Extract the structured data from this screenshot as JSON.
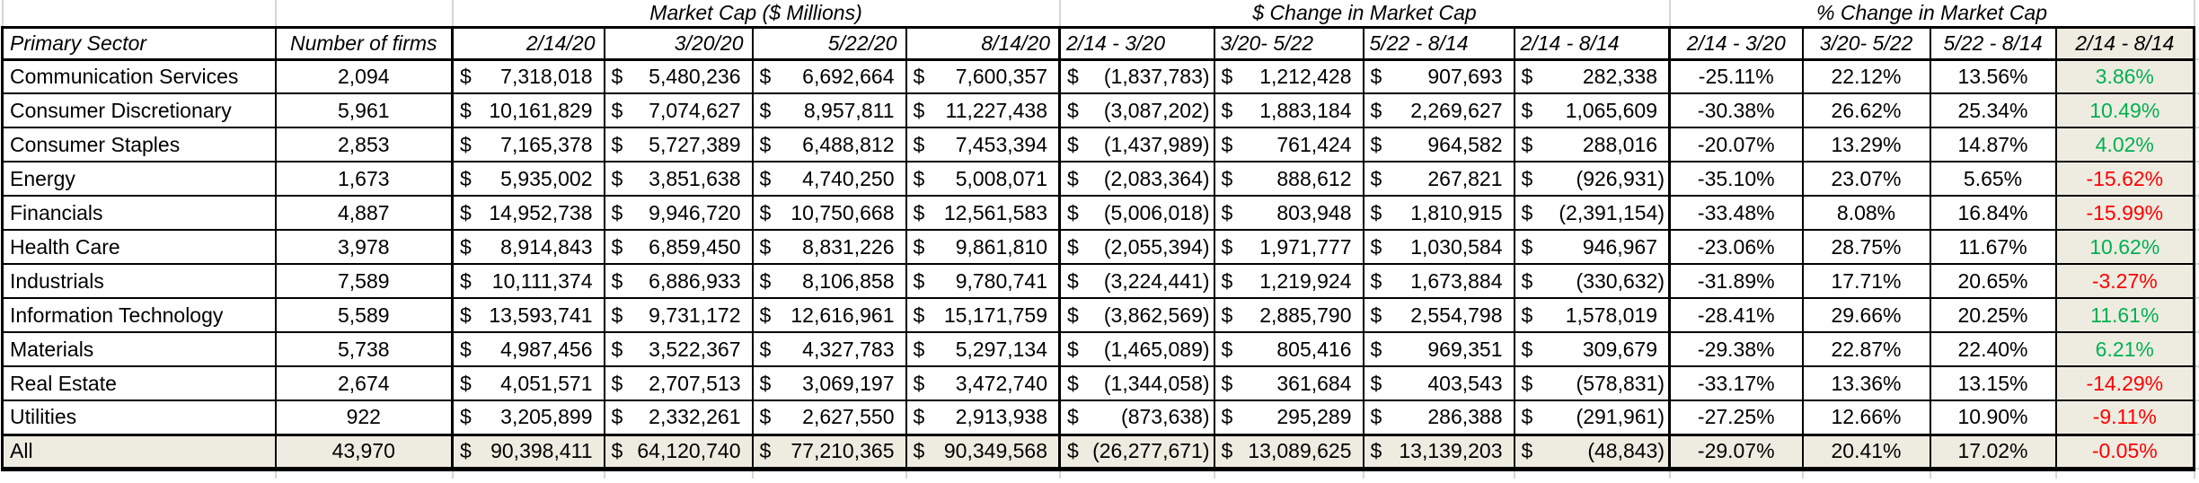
{
  "sections": {
    "market_cap": "Market Cap ($ Millions)",
    "dollar_change": "$ Change in Market Cap",
    "pct_change": "% Change in Market Cap"
  },
  "columns": {
    "primary_sector": "Primary Sector",
    "number_of_firms": "Number of firms",
    "market_cap_dates": [
      "2/14/20",
      "3/20/20",
      "5/22/20",
      "8/14/20"
    ],
    "dollar_change_periods": [
      "2/14 - 3/20",
      "3/20- 5/22",
      "5/22 - 8/14",
      "2/14 - 8/14"
    ],
    "pct_change_periods": [
      "2/14 - 3/20",
      "3/20- 5/22",
      "5/22 - 8/14",
      "2/14 - 8/14"
    ]
  },
  "currency_symbol": "$",
  "rows": [
    {
      "sector": "Communication Services",
      "firms": "2,094",
      "market_cap": [
        "7,318,018",
        "5,480,236",
        "6,692,664",
        "7,600,357"
      ],
      "dollar_change": [
        "(1,837,783)",
        "1,212,428",
        "907,693",
        "282,338"
      ],
      "pct_change": [
        "-25.11%",
        "22.12%",
        "13.56%",
        "3.86%"
      ],
      "is_total": false
    },
    {
      "sector": "Consumer Discretionary",
      "firms": "5,961",
      "market_cap": [
        "10,161,829",
        "7,074,627",
        "8,957,811",
        "11,227,438"
      ],
      "dollar_change": [
        "(3,087,202)",
        "1,883,184",
        "2,269,627",
        "1,065,609"
      ],
      "pct_change": [
        "-30.38%",
        "26.62%",
        "25.34%",
        "10.49%"
      ],
      "is_total": false
    },
    {
      "sector": "Consumer Staples",
      "firms": "2,853",
      "market_cap": [
        "7,165,378",
        "5,727,389",
        "6,488,812",
        "7,453,394"
      ],
      "dollar_change": [
        "(1,437,989)",
        "761,424",
        "964,582",
        "288,016"
      ],
      "pct_change": [
        "-20.07%",
        "13.29%",
        "14.87%",
        "4.02%"
      ],
      "is_total": false
    },
    {
      "sector": "Energy",
      "firms": "1,673",
      "market_cap": [
        "5,935,002",
        "3,851,638",
        "4,740,250",
        "5,008,071"
      ],
      "dollar_change": [
        "(2,083,364)",
        "888,612",
        "267,821",
        "(926,931)"
      ],
      "pct_change": [
        "-35.10%",
        "23.07%",
        "5.65%",
        "-15.62%"
      ],
      "is_total": false
    },
    {
      "sector": "Financials",
      "firms": "4,887",
      "market_cap": [
        "14,952,738",
        "9,946,720",
        "10,750,668",
        "12,561,583"
      ],
      "dollar_change": [
        "(5,006,018)",
        "803,948",
        "1,810,915",
        "(2,391,154)"
      ],
      "pct_change": [
        "-33.48%",
        "8.08%",
        "16.84%",
        "-15.99%"
      ],
      "is_total": false
    },
    {
      "sector": "Health Care",
      "firms": "3,978",
      "market_cap": [
        "8,914,843",
        "6,859,450",
        "8,831,226",
        "9,861,810"
      ],
      "dollar_change": [
        "(2,055,394)",
        "1,971,777",
        "1,030,584",
        "946,967"
      ],
      "pct_change": [
        "-23.06%",
        "28.75%",
        "11.67%",
        "10.62%"
      ],
      "is_total": false
    },
    {
      "sector": "Industrials",
      "firms": "7,589",
      "market_cap": [
        "10,111,374",
        "6,886,933",
        "8,106,858",
        "9,780,741"
      ],
      "dollar_change": [
        "(3,224,441)",
        "1,219,924",
        "1,673,884",
        "(330,632)"
      ],
      "pct_change": [
        "-31.89%",
        "17.71%",
        "20.65%",
        "-3.27%"
      ],
      "is_total": false
    },
    {
      "sector": "Information Technology",
      "firms": "5,589",
      "market_cap": [
        "13,593,741",
        "9,731,172",
        "12,616,961",
        "15,171,759"
      ],
      "dollar_change": [
        "(3,862,569)",
        "2,885,790",
        "2,554,798",
        "1,578,019"
      ],
      "pct_change": [
        "-28.41%",
        "29.66%",
        "20.25%",
        "11.61%"
      ],
      "is_total": false
    },
    {
      "sector": "Materials",
      "firms": "5,738",
      "market_cap": [
        "4,987,456",
        "3,522,367",
        "4,327,783",
        "5,297,134"
      ],
      "dollar_change": [
        "(1,465,089)",
        "805,416",
        "969,351",
        "309,679"
      ],
      "pct_change": [
        "-29.38%",
        "22.87%",
        "22.40%",
        "6.21%"
      ],
      "is_total": false
    },
    {
      "sector": "Real Estate",
      "firms": "2,674",
      "market_cap": [
        "4,051,571",
        "2,707,513",
        "3,069,197",
        "3,472,740"
      ],
      "dollar_change": [
        "(1,344,058)",
        "361,684",
        "403,543",
        "(578,831)"
      ],
      "pct_change": [
        "-33.17%",
        "13.36%",
        "13.15%",
        "-14.29%"
      ],
      "is_total": false
    },
    {
      "sector": "Utilities",
      "firms": "922",
      "market_cap": [
        "3,205,899",
        "2,332,261",
        "2,627,550",
        "2,913,938"
      ],
      "dollar_change": [
        "(873,638)",
        "295,289",
        "286,388",
        "(291,961)"
      ],
      "pct_change": [
        "-27.25%",
        "12.66%",
        "10.90%",
        "-9.11%"
      ],
      "is_total": false
    },
    {
      "sector": "All",
      "firms": "43,970",
      "market_cap": [
        "90,398,411",
        "64,120,740",
        "77,210,365",
        "90,349,568"
      ],
      "dollar_change": [
        "(26,277,671)",
        "13,089,625",
        "13,139,203",
        "(48,843)"
      ],
      "pct_change": [
        "-29.07%",
        "20.41%",
        "17.02%",
        "-0.05%"
      ],
      "is_total": true
    }
  ],
  "colors": {
    "positive_green": "#00B050",
    "negative_red": "#FF0000",
    "total_fill": "#EEECE1",
    "gridline": "#D6D6D6",
    "border": "#000000"
  }
}
